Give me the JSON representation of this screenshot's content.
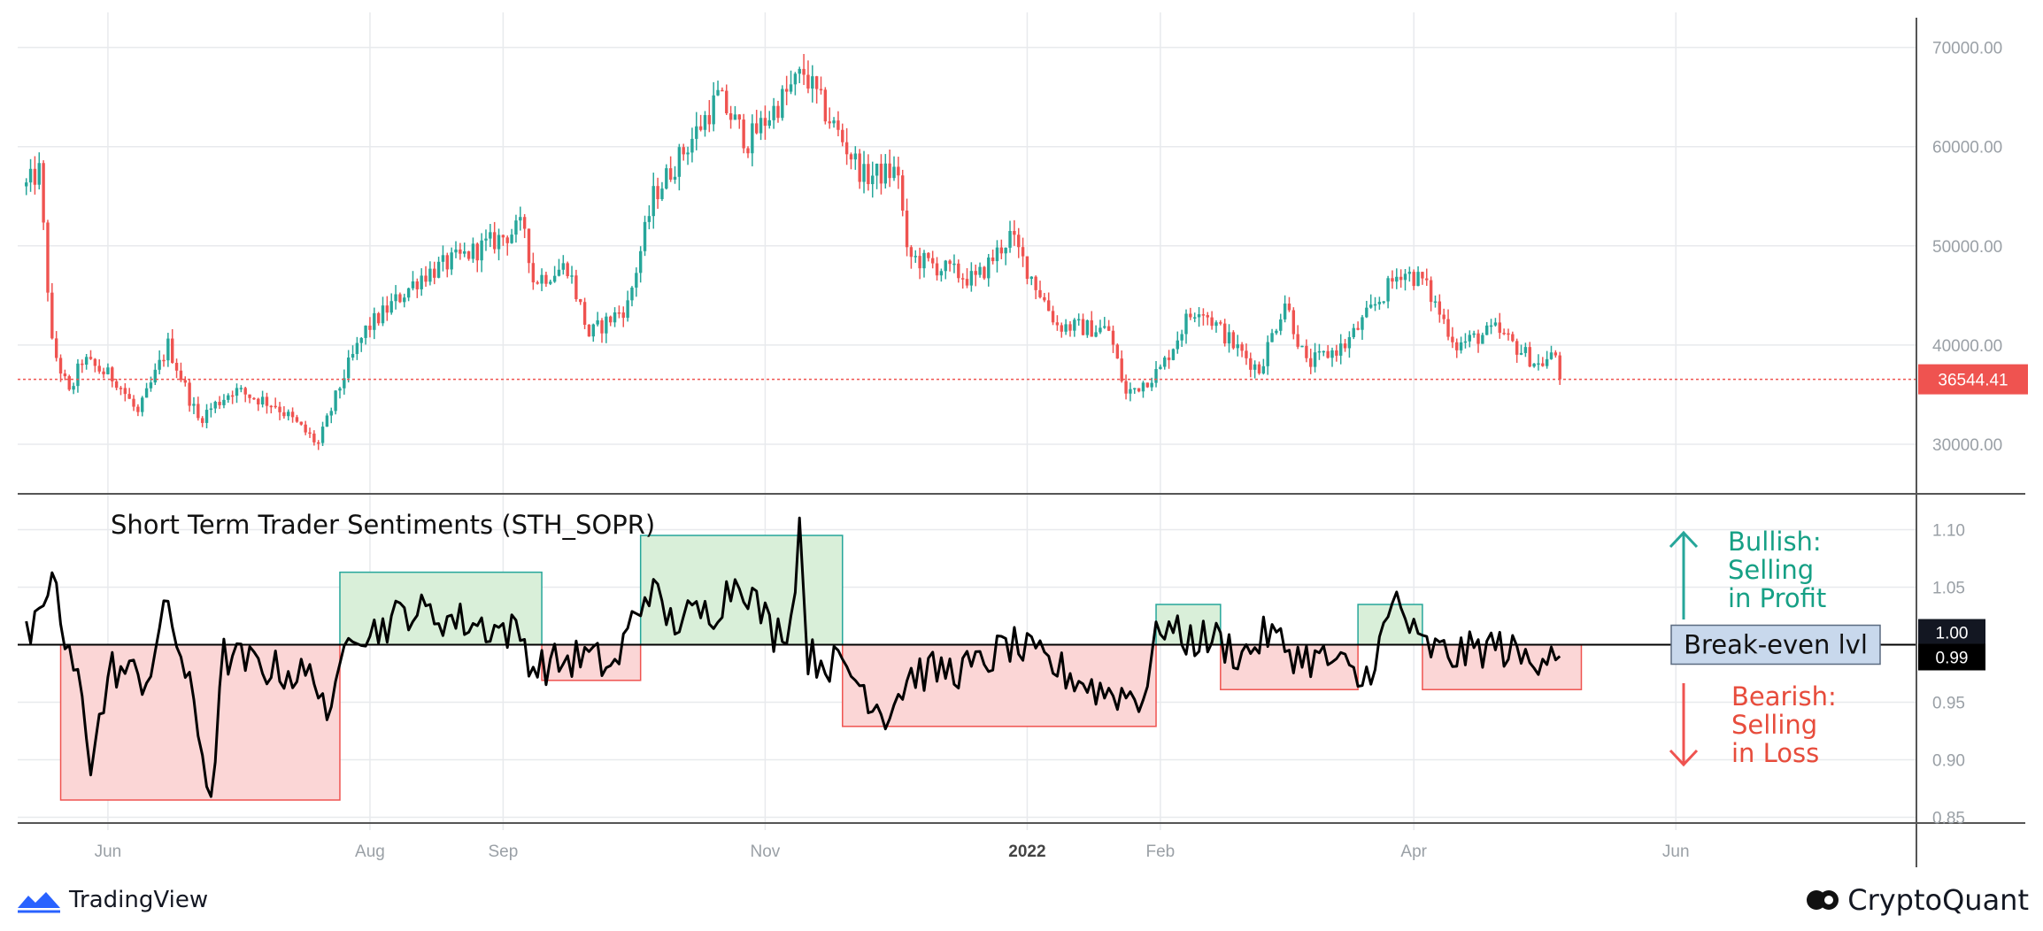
{
  "branding": {
    "tradingview": "TradingView",
    "cryptoquant": "CryptoQuant"
  },
  "colors": {
    "up": "#26a69a",
    "down": "#ef5350",
    "profit_text": "#16a085",
    "loss_text": "#e74c3c",
    "profit_fill": "#d9efd9",
    "loss_fill": "#fbd6d6"
  },
  "chart_data": [
    {
      "type": "candlestick",
      "title": "",
      "ylim": [
        25000,
        73000
      ],
      "yticks": [
        "70000.00",
        "60000.00",
        "50000.00",
        "40000.00",
        "30000.00"
      ],
      "last_price": 36544.41,
      "last_price_label": "36544.41",
      "anchors": [
        [
          "2021-05-13",
          56000
        ],
        [
          "2021-05-16",
          57500
        ],
        [
          "2021-05-19",
          40000
        ],
        [
          "2021-05-23",
          35000
        ],
        [
          "2021-05-26",
          38500
        ],
        [
          "2021-06-03",
          36500
        ],
        [
          "2021-06-08",
          33000
        ],
        [
          "2021-06-15",
          40000
        ],
        [
          "2021-06-22",
          32500
        ],
        [
          "2021-06-30",
          35500
        ],
        [
          "2021-07-10",
          34000
        ],
        [
          "2021-07-20",
          30000
        ],
        [
          "2021-07-26",
          37000
        ],
        [
          "2021-07-31",
          41500
        ],
        [
          "2021-08-13",
          47000
        ],
        [
          "2021-08-23",
          49000
        ],
        [
          "2021-09-06",
          52000
        ],
        [
          "2021-09-08",
          46500
        ],
        [
          "2021-09-16",
          48000
        ],
        [
          "2021-09-21",
          41000
        ],
        [
          "2021-09-30",
          44000
        ],
        [
          "2021-10-06",
          55000
        ],
        [
          "2021-10-16",
          61500
        ],
        [
          "2021-10-21",
          65000
        ],
        [
          "2021-10-28",
          60500
        ],
        [
          "2021-11-10",
          67500
        ],
        [
          "2021-11-15",
          63500
        ],
        [
          "2021-11-24",
          57000
        ],
        [
          "2021-12-02",
          57500
        ],
        [
          "2021-12-04",
          49000
        ],
        [
          "2021-12-20",
          46500
        ],
        [
          "2021-12-28",
          51000
        ],
        [
          "2022-01-08",
          42000
        ],
        [
          "2022-01-20",
          41500
        ],
        [
          "2022-01-24",
          35000
        ],
        [
          "2022-02-01",
          37500
        ],
        [
          "2022-02-07",
          42500
        ],
        [
          "2022-02-10",
          44000
        ],
        [
          "2022-02-18",
          40000
        ],
        [
          "2022-02-24",
          37500
        ],
        [
          "2022-03-02",
          44500
        ],
        [
          "2022-03-07",
          38000
        ],
        [
          "2022-03-16",
          40000
        ],
        [
          "2022-03-29",
          47500
        ],
        [
          "2022-04-03",
          46500
        ],
        [
          "2022-04-11",
          40000
        ],
        [
          "2022-04-20",
          41500
        ],
        [
          "2022-04-30",
          38000
        ],
        [
          "2022-05-04",
          39000
        ],
        [
          "2022-05-05",
          36544
        ]
      ]
    },
    {
      "type": "line",
      "title": "Short Term Trader Sentiments (STH_SOPR)",
      "ylim": [
        0.845,
        1.125
      ],
      "yticks": [
        "1.10",
        "1.05",
        "1.00",
        "0.95",
        "0.90",
        "0.85"
      ],
      "breakeven": 1.0,
      "breakeven_label": "1.00",
      "last_value": 0.99,
      "last_value_label": "0.99",
      "anchors": [
        [
          "2021-05-13",
          1.005
        ],
        [
          "2021-05-17",
          1.02
        ],
        [
          "2021-05-19",
          1.07
        ],
        [
          "2021-05-22",
          0.995
        ],
        [
          "2021-05-26",
          0.96
        ],
        [
          "2021-05-28",
          0.9
        ],
        [
          "2021-06-02",
          0.98
        ],
        [
          "2021-06-10",
          0.97
        ],
        [
          "2021-06-15",
          1.035
        ],
        [
          "2021-06-20",
          0.96
        ],
        [
          "2021-06-25",
          0.87
        ],
        [
          "2021-06-28",
          0.99
        ],
        [
          "2021-07-08",
          0.98
        ],
        [
          "2021-07-20",
          0.97
        ],
        [
          "2021-07-23",
          0.93
        ],
        [
          "2021-07-27",
          1.02
        ],
        [
          "2021-08-01",
          1.01
        ],
        [
          "2021-08-10",
          1.03
        ],
        [
          "2021-08-23",
          1.02
        ],
        [
          "2021-09-05",
          1.01
        ],
        [
          "2021-09-08",
          0.98
        ],
        [
          "2021-09-20",
          0.99
        ],
        [
          "2021-09-27",
          0.98
        ],
        [
          "2021-10-01",
          1.02
        ],
        [
          "2021-10-05",
          1.05
        ],
        [
          "2021-10-10",
          1.02
        ],
        [
          "2021-10-20",
          1.03
        ],
        [
          "2021-10-26",
          1.06
        ],
        [
          "2021-11-03",
          1.01
        ],
        [
          "2021-11-07",
          1.02
        ],
        [
          "2021-11-09",
          1.105
        ],
        [
          "2021-11-11",
          0.99
        ],
        [
          "2021-11-20",
          0.98
        ],
        [
          "2021-11-29",
          0.94
        ],
        [
          "2021-12-05",
          0.975
        ],
        [
          "2021-12-20",
          0.98
        ],
        [
          "2021-12-28",
          1.0
        ],
        [
          "2022-01-05",
          0.985
        ],
        [
          "2022-01-18",
          0.96
        ],
        [
          "2022-01-28",
          0.955
        ],
        [
          "2022-02-01",
          1.02
        ],
        [
          "2022-02-06",
          1.005
        ],
        [
          "2022-02-14",
          1.005
        ],
        [
          "2022-02-20",
          0.99
        ],
        [
          "2022-02-26",
          1.01
        ],
        [
          "2022-03-05",
          0.99
        ],
        [
          "2022-03-14",
          0.985
        ],
        [
          "2022-03-20",
          0.965
        ],
        [
          "2022-03-24",
          1.0
        ],
        [
          "2022-03-28",
          1.04
        ],
        [
          "2022-04-02",
          1.0
        ],
        [
          "2022-04-10",
          0.99
        ],
        [
          "2022-04-20",
          1.0
        ],
        [
          "2022-04-28",
          0.985
        ],
        [
          "2022-05-03",
          1.0
        ],
        [
          "2022-05-05",
          0.99
        ]
      ],
      "zones": [
        {
          "kind": "loss",
          "start": "2021-05-21",
          "end": "2021-07-25",
          "low": 0.865,
          "high": 1.0
        },
        {
          "kind": "profit",
          "start": "2021-07-25",
          "end": "2021-09-10",
          "low": 1.0,
          "high": 1.063
        },
        {
          "kind": "loss",
          "start": "2021-09-10",
          "end": "2021-10-03",
          "low": 0.969,
          "high": 1.0
        },
        {
          "kind": "profit",
          "start": "2021-10-03",
          "end": "2021-11-19",
          "low": 1.0,
          "high": 1.095
        },
        {
          "kind": "loss",
          "start": "2021-11-19",
          "end": "2022-01-31",
          "low": 0.929,
          "high": 1.0
        },
        {
          "kind": "profit",
          "start": "2022-01-31",
          "end": "2022-02-15",
          "low": 1.0,
          "high": 1.035
        },
        {
          "kind": "loss",
          "start": "2022-02-15",
          "end": "2022-03-19",
          "low": 0.961,
          "high": 1.0
        },
        {
          "kind": "profit",
          "start": "2022-03-19",
          "end": "2022-04-03",
          "low": 1.0,
          "high": 1.035
        },
        {
          "kind": "loss",
          "start": "2022-04-03",
          "end": "2022-05-10",
          "low": 0.961,
          "high": 1.0
        }
      ],
      "annotations": {
        "bullish": [
          "Bullish:",
          "Selling",
          "in Profit"
        ],
        "bearish": [
          "Bearish:",
          "Selling",
          "in Loss"
        ],
        "breakeven": "Break-even lvl"
      }
    }
  ],
  "x_axis": {
    "range": [
      "2021-05-11",
      "2022-07-27"
    ],
    "ticks": [
      {
        "date": "2021-06-01",
        "label": "Jun",
        "bold": false
      },
      {
        "date": "2021-08-01",
        "label": "Aug",
        "bold": false
      },
      {
        "date": "2021-09-01",
        "label": "Sep",
        "bold": false
      },
      {
        "date": "2021-11-01",
        "label": "Nov",
        "bold": false
      },
      {
        "date": "2022-01-01",
        "label": "2022",
        "bold": true
      },
      {
        "date": "2022-02-01",
        "label": "Feb",
        "bold": false
      },
      {
        "date": "2022-04-01",
        "label": "Apr",
        "bold": false
      },
      {
        "date": "2022-06-01",
        "label": "Jun",
        "bold": false
      }
    ]
  }
}
